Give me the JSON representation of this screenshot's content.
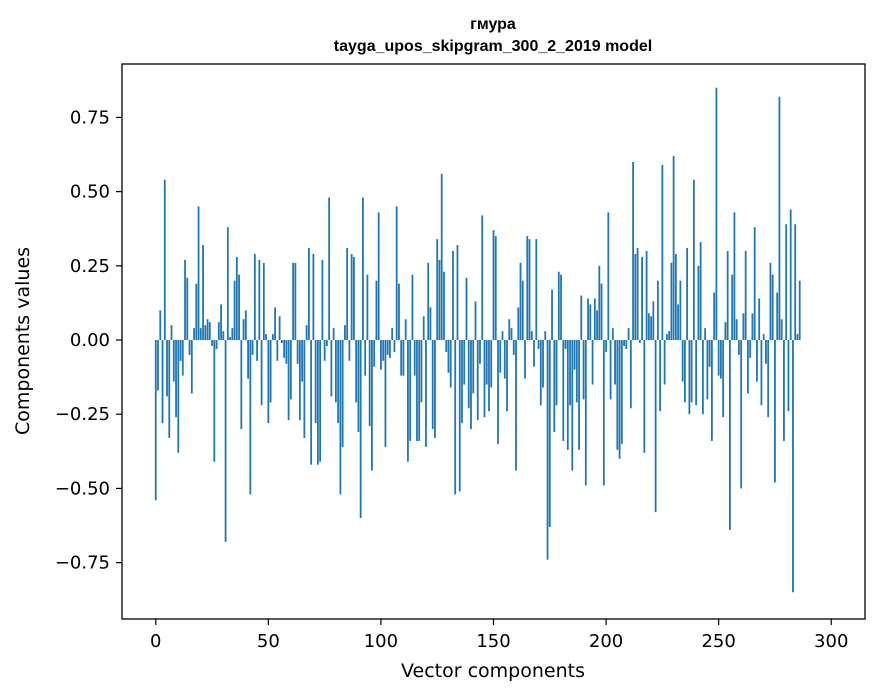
{
  "chart_data": {
    "type": "bar",
    "title_line1": "гмура",
    "title_line2": "tayga_upos_skipgram_300_2_2019 model",
    "xlabel": "Vector components",
    "ylabel": "Components values",
    "xlim": [
      -15,
      315
    ],
    "ylim": [
      -0.94,
      0.93
    ],
    "xticks": [
      0,
      50,
      100,
      150,
      200,
      250,
      300
    ],
    "xtick_labels": [
      "0",
      "50",
      "100",
      "150",
      "200",
      "250",
      "300"
    ],
    "yticks": [
      0.75,
      0.5,
      0.25,
      0.0,
      -0.25,
      -0.5,
      -0.75
    ],
    "ytick_labels": [
      "0.75",
      "0.50",
      "0.25",
      "0.00",
      "−0.25",
      "−0.50",
      "−0.75"
    ],
    "grid": false,
    "bar_color": "#1f77b4",
    "values": [
      -0.54,
      -0.17,
      0.1,
      -0.28,
      0.54,
      -0.19,
      -0.33,
      0.05,
      -0.14,
      -0.26,
      -0.38,
      -0.07,
      -0.12,
      0.27,
      0.21,
      -0.05,
      -0.18,
      0.04,
      0.19,
      0.45,
      0.04,
      0.32,
      0.05,
      0.07,
      0.06,
      -0.02,
      -0.41,
      -0.03,
      0.06,
      0.12,
      0.03,
      -0.68,
      0.38,
      0.01,
      0.04,
      0.2,
      0.28,
      0.22,
      -0.3,
      0.07,
      0.1,
      -0.13,
      -0.52,
      -0.05,
      0.29,
      -0.07,
      0.27,
      -0.22,
      0.26,
      0.02,
      -0.28,
      -0.21,
      0.02,
      0.11,
      -0.07,
      0.08,
      -0.01,
      -0.06,
      -0.08,
      -0.27,
      -0.2,
      0.26,
      0.26,
      -0.08,
      -0.27,
      -0.14,
      -0.33,
      0.05,
      0.31,
      -0.42,
      0.29,
      -0.28,
      -0.42,
      -0.41,
      0.27,
      -0.07,
      -0.02,
      0.48,
      -0.19,
      0.04,
      -0.21,
      -0.28,
      -0.52,
      -0.36,
      0.05,
      0.31,
      -0.07,
      0.29,
      0.28,
      -0.21,
      -0.31,
      -0.6,
      0.48,
      -0.12,
      0.22,
      -0.29,
      -0.44,
      -0.09,
      0.2,
      0.43,
      -0.1,
      -0.07,
      -0.36,
      -0.05,
      -0.06,
      0.04,
      -0.04,
      0.45,
      0.19,
      -0.12,
      -0.12,
      0.07,
      -0.41,
      -0.34,
      0.22,
      -0.12,
      -0.34,
      -0.34,
      -0.21,
      0.08,
      -0.36,
      0.26,
      0.11,
      -0.3,
      -0.33,
      0.34,
      0.27,
      0.56,
      0.23,
      -0.04,
      -0.11,
      -0.16,
      0.3,
      -0.52,
      0.32,
      -0.51,
      -0.28,
      -0.15,
      0.21,
      -0.23,
      -0.3,
      -0.18,
      0.13,
      -0.27,
      -0.08,
      0.42,
      -0.26,
      -0.15,
      -0.24,
      -0.16,
      0.37,
      0.35,
      -0.35,
      -0.11,
      0.03,
      -0.13,
      -0.24,
      0.07,
      0.04,
      -0.05,
      -0.44,
      0.11,
      0.26,
      0.2,
      -0.13,
      0.35,
      0.34,
      0.03,
      -0.09,
      0.34,
      -0.03,
      -0.22,
      -0.16,
      0.03,
      -0.74,
      -0.63,
      0.17,
      -0.31,
      -0.22,
      0.23,
      0.22,
      -0.34,
      -0.03,
      -0.37,
      -0.22,
      -0.44,
      -0.1,
      -0.21,
      -0.37,
      0.15,
      -0.2,
      -0.49,
      0.14,
      0.12,
      -0.15,
      0.14,
      0.1,
      0.25,
      0.19,
      -0.49,
      -0.04,
      0.43,
      -0.2,
      0.04,
      -0.15,
      -0.37,
      -0.4,
      -0.35,
      -0.02,
      -0.03,
      0.04,
      -0.23,
      0.6,
      0.29,
      0.31,
      -0.01,
      0.28,
      -0.38,
      0.3,
      0.09,
      0.08,
      0.13,
      -0.58,
      0.2,
      -0.24,
      0.59,
      -0.15,
      0.02,
      0.03,
      0.26,
      0.62,
      0.29,
      0.12,
      0.2,
      -0.14,
      -0.21,
      0.31,
      -0.25,
      -0.21,
      0.54,
      -0.22,
      0.25,
      0.33,
      -0.25,
      0.04,
      -0.2,
      -0.09,
      -0.34,
      0.16,
      0.85,
      -0.12,
      -0.13,
      -0.26,
      0.06,
      0.3,
      -0.64,
      0.22,
      0.43,
      0.07,
      -0.05,
      -0.5,
      0.09,
      0.3,
      -0.18,
      -0.06,
      0.09,
      0.38,
      -0.14,
      0.14,
      -0.22,
      0.02,
      -0.08,
      -0.26,
      0.26,
      0.22,
      -0.48,
      0.16,
      0.82,
      0.07,
      -0.34,
      0.39,
      -0.24,
      0.44,
      -0.85,
      0.39,
      0.02,
      0.2
    ]
  }
}
